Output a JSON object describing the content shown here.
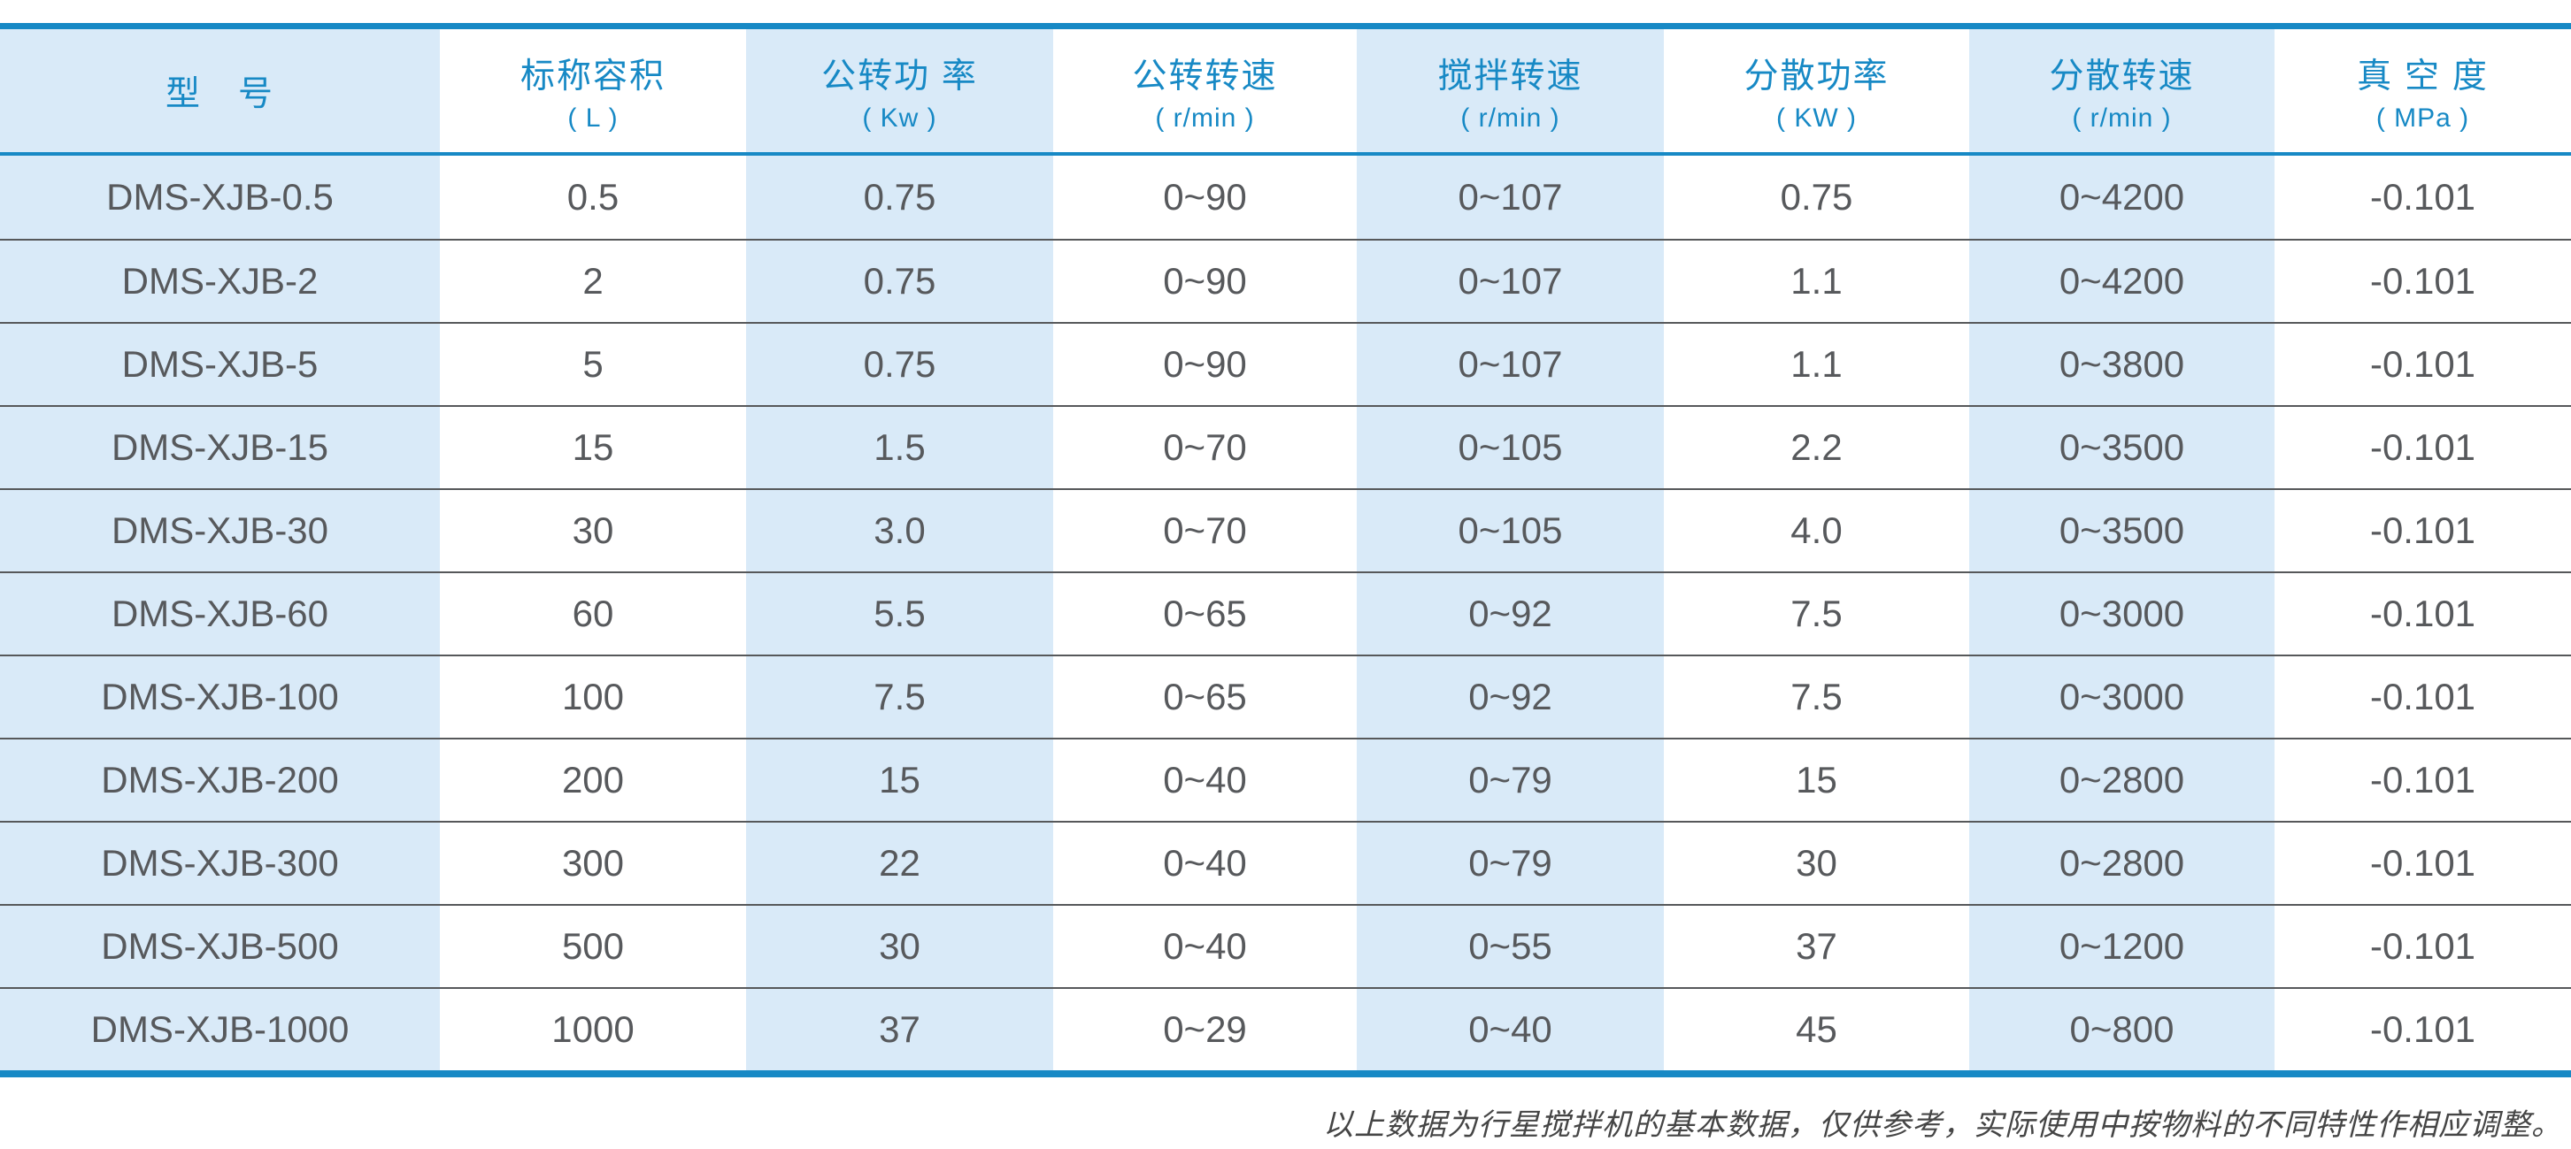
{
  "colors": {
    "accent_blue": "#1789c5",
    "light_blue_stripe": "#d9eaf8",
    "cell_text": "#57595c",
    "separator_gray": "#56585a"
  },
  "table": {
    "columns": [
      {
        "title": "型　号",
        "unit": ""
      },
      {
        "title": "标称容积",
        "unit": "( L )"
      },
      {
        "title": "公转功 率",
        "unit": "( Kw )"
      },
      {
        "title": "公转转速",
        "unit": "( r/min )"
      },
      {
        "title": "搅拌转速",
        "unit": "( r/min )"
      },
      {
        "title": "分散功率",
        "unit": "( KW )"
      },
      {
        "title": "分散转速",
        "unit": "( r/min )"
      },
      {
        "title": "真 空 度",
        "unit": "( MPa )"
      }
    ],
    "rows": [
      [
        "DMS-XJB-0.5",
        "0.5",
        "0.75",
        "0~90",
        "0~107",
        "0.75",
        "0~4200",
        "-0.101"
      ],
      [
        "DMS-XJB-2",
        "2",
        "0.75",
        "0~90",
        "0~107",
        "1.1",
        "0~4200",
        "-0.101"
      ],
      [
        "DMS-XJB-5",
        "5",
        "0.75",
        "0~90",
        "0~107",
        "1.1",
        "0~3800",
        "-0.101"
      ],
      [
        "DMS-XJB-15",
        "15",
        "1.5",
        "0~70",
        "0~105",
        "2.2",
        "0~3500",
        "-0.101"
      ],
      [
        "DMS-XJB-30",
        "30",
        "3.0",
        "0~70",
        "0~105",
        "4.0",
        "0~3500",
        "-0.101"
      ],
      [
        "DMS-XJB-60",
        "60",
        "5.5",
        "0~65",
        "0~92",
        "7.5",
        "0~3000",
        "-0.101"
      ],
      [
        "DMS-XJB-100",
        "100",
        "7.5",
        "0~65",
        "0~92",
        "7.5",
        "0~3000",
        "-0.101"
      ],
      [
        "DMS-XJB-200",
        "200",
        "15",
        "0~40",
        "0~79",
        "15",
        "0~2800",
        "-0.101"
      ],
      [
        "DMS-XJB-300",
        "300",
        "22",
        "0~40",
        "0~79",
        "30",
        "0~2800",
        "-0.101"
      ],
      [
        "DMS-XJB-500",
        "500",
        "30",
        "0~40",
        "0~55",
        "37",
        "0~1200",
        "-0.101"
      ],
      [
        "DMS-XJB-1000",
        "1000",
        "37",
        "0~29",
        "0~40",
        "45",
        "0~800",
        "-0.101"
      ]
    ]
  },
  "footnote": {
    "text": "以上数据为行星搅拌机的基本数据，仅供参考，实际使用中按物料的不同特性作相应调整。"
  }
}
